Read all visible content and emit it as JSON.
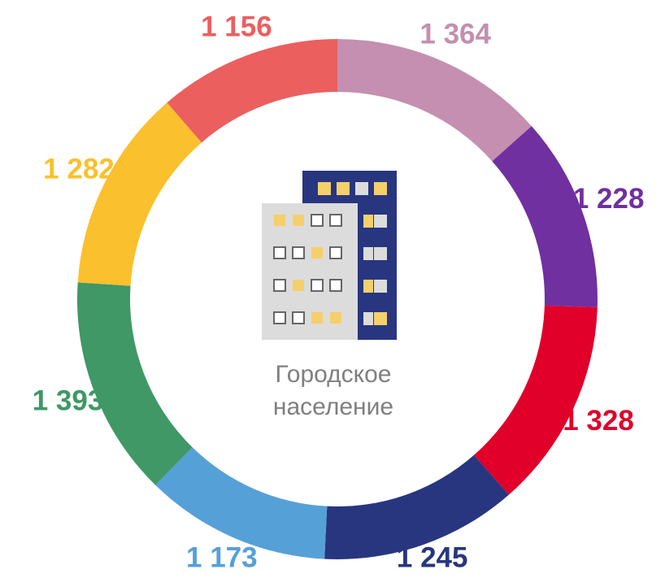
{
  "chart_data": {
    "type": "donut",
    "categories": [
      null,
      null,
      null,
      null,
      null,
      null,
      null,
      null
    ],
    "values": [
      1364,
      1228,
      1328,
      1245,
      1173,
      1393,
      1282,
      1156
    ],
    "value_labels": [
      "1 364",
      "1 228",
      "1 328",
      "1 245",
      "1 173",
      "1 393",
      "1 282",
      "1 156"
    ],
    "colors": [
      "#c48fb0",
      "#7030a0",
      "#e0002a",
      "#28367f",
      "#56a0d8",
      "#3f9866",
      "#fbc02d",
      "#eb5f5f"
    ],
    "center_label": [
      "Городское",
      "население"
    ]
  }
}
